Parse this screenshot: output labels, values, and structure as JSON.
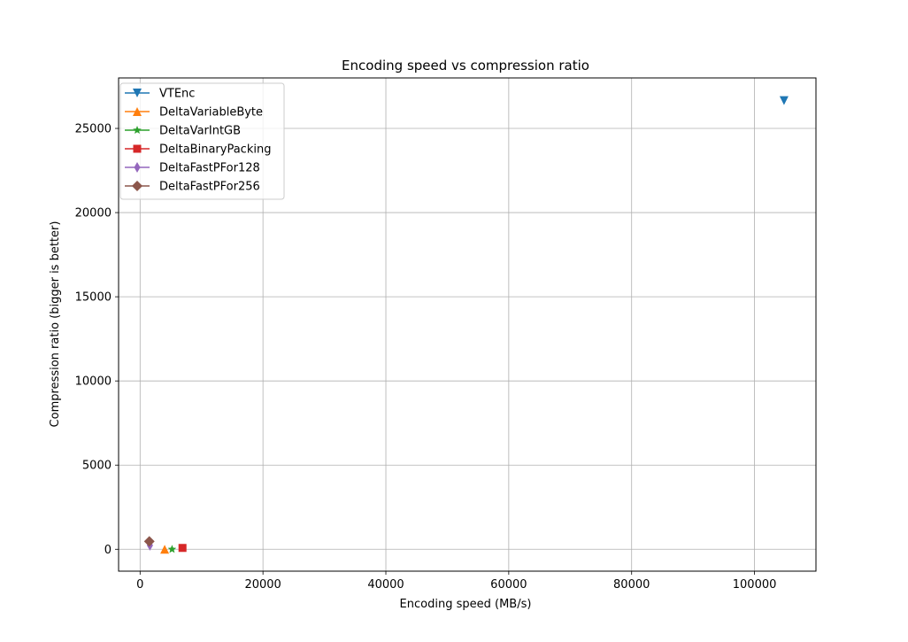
{
  "chart_data": {
    "type": "scatter",
    "title": "Encoding speed vs compression ratio",
    "xlabel": "Encoding speed (MB/s)",
    "ylabel": "Compression ratio (bigger is better)",
    "xlim": [
      -3500,
      110000
    ],
    "ylim": [
      -1300,
      28000
    ],
    "xticks": [
      0,
      20000,
      40000,
      60000,
      80000,
      100000
    ],
    "xtick_labels": [
      "0",
      "20000",
      "40000",
      "60000",
      "80000",
      "100000"
    ],
    "yticks": [
      0,
      5000,
      10000,
      15000,
      20000,
      25000
    ],
    "ytick_labels": [
      "0",
      "5000",
      "10000",
      "15000",
      "20000",
      "25000"
    ],
    "grid": true,
    "legend_position": "top-left",
    "series": [
      {
        "name": "VTEnc",
        "color": "#1f77b4",
        "marker": "triangle-down",
        "points": [
          {
            "x": 104800,
            "y": 26650
          }
        ]
      },
      {
        "name": "DeltaVariableByte",
        "color": "#ff7f0e",
        "marker": "triangle-up",
        "points": [
          {
            "x": 4000,
            "y": 0
          }
        ]
      },
      {
        "name": "DeltaVarIntGB",
        "color": "#2ca02c",
        "marker": "star",
        "points": [
          {
            "x": 5200,
            "y": 0
          }
        ]
      },
      {
        "name": "DeltaBinaryPacking",
        "color": "#d62728",
        "marker": "square",
        "points": [
          {
            "x": 6900,
            "y": 80
          }
        ]
      },
      {
        "name": "DeltaFastPFor128",
        "color": "#9467bd",
        "marker": "thin-diamond",
        "points": [
          {
            "x": 1600,
            "y": 230
          }
        ]
      },
      {
        "name": "DeltaFastPFor256",
        "color": "#8c564b",
        "marker": "diamond",
        "points": [
          {
            "x": 1500,
            "y": 470
          }
        ]
      }
    ]
  }
}
